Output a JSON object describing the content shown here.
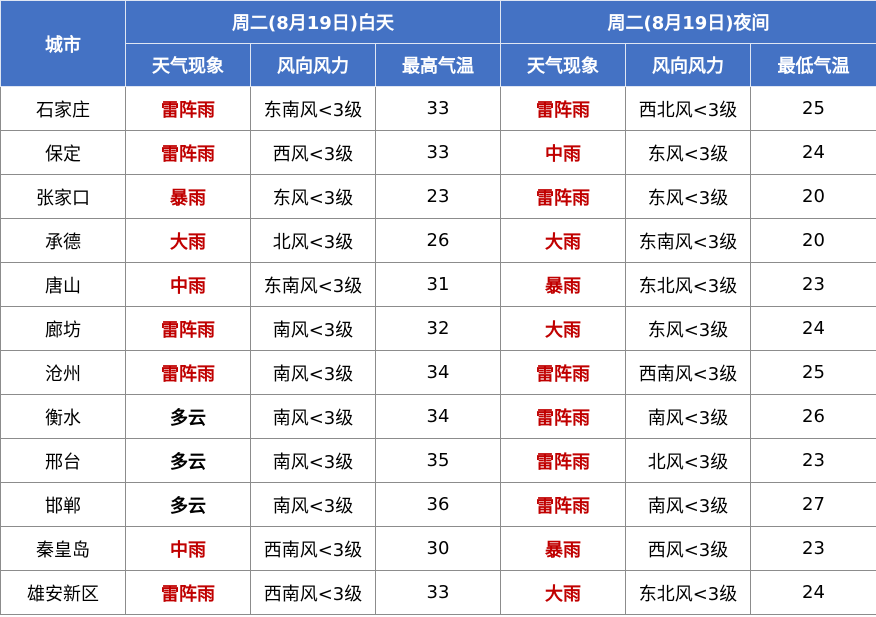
{
  "table": {
    "header": {
      "city": "城市",
      "day": "周二(8月19日)白天",
      "night": "周二(8月19日)夜间",
      "columns": [
        "天气现象",
        "风向风力",
        "最高气温",
        "天气现象",
        "风向风力",
        "最低气温"
      ]
    },
    "rows": [
      [
        "石家庄",
        {
          "text": "雷阵雨",
          "color": "#c00000"
        },
        "东南风<3级",
        33,
        {
          "text": "雷阵雨",
          "color": "#c00000"
        },
        "西北风<3级",
        25
      ],
      [
        "保定",
        {
          "text": "雷阵雨",
          "color": "#c00000"
        },
        "西风<3级",
        33,
        {
          "text": "中雨",
          "color": "#c00000"
        },
        "东风<3级",
        24
      ],
      [
        "张家口",
        {
          "text": "暴雨",
          "color": "#c00000"
        },
        "东风<3级",
        23,
        {
          "text": "雷阵雨",
          "color": "#c00000"
        },
        "东风<3级",
        20
      ],
      [
        "承德",
        {
          "text": "大雨",
          "color": "#c00000"
        },
        "北风<3级",
        26,
        {
          "text": "大雨",
          "color": "#c00000"
        },
        "东南风<3级",
        20
      ],
      [
        "唐山",
        {
          "text": "中雨",
          "color": "#c00000"
        },
        "东南风<3级",
        31,
        {
          "text": "暴雨",
          "color": "#c00000"
        },
        "东北风<3级",
        23
      ],
      [
        "廊坊",
        {
          "text": "雷阵雨",
          "color": "#c00000"
        },
        "南风<3级",
        32,
        {
          "text": "大雨",
          "color": "#c00000"
        },
        "东风<3级",
        24
      ],
      [
        "沧州",
        {
          "text": "雷阵雨",
          "color": "#c00000"
        },
        "南风<3级",
        34,
        {
          "text": "雷阵雨",
          "color": "#c00000"
        },
        "西南风<3级",
        25
      ],
      [
        "衡水",
        {
          "text": "多云",
          "color": "#000000"
        },
        "南风<3级",
        34,
        {
          "text": "雷阵雨",
          "color": "#c00000"
        },
        "南风<3级",
        26
      ],
      [
        "邢台",
        {
          "text": "多云",
          "color": "#000000"
        },
        "南风<3级",
        35,
        {
          "text": "雷阵雨",
          "color": "#c00000"
        },
        "北风<3级",
        23
      ],
      [
        "邯郸",
        {
          "text": "多云",
          "color": "#000000"
        },
        "南风<3级",
        36,
        {
          "text": "雷阵雨",
          "color": "#c00000"
        },
        "南风<3级",
        27
      ],
      [
        "秦皇岛",
        {
          "text": "中雨",
          "color": "#c00000"
        },
        "西南风<3级",
        30,
        {
          "text": "暴雨",
          "color": "#c00000"
        },
        "西风<3级",
        23
      ],
      [
        "雄安新区",
        {
          "text": "雷阵雨",
          "color": "#c00000"
        },
        "西南风<3级",
        33,
        {
          "text": "大雨",
          "color": "#c00000"
        },
        "东北风<3级",
        24
      ]
    ]
  }
}
